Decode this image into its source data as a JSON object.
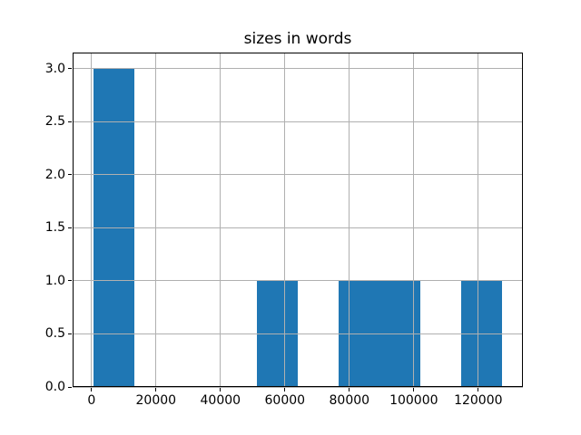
{
  "chart_data": {
    "type": "bar",
    "subtype": "histogram",
    "title": "sizes in words",
    "xlabel": "",
    "ylabel": "",
    "bin_edges": [
      500,
      13200,
      25900,
      38600,
      51300,
      64000,
      76700,
      89400,
      102100,
      114800,
      127500
    ],
    "counts": [
      3,
      0,
      0,
      0,
      1,
      0,
      1,
      1,
      0,
      1
    ],
    "x_ticks": [
      0,
      20000,
      40000,
      60000,
      80000,
      100000,
      120000
    ],
    "x_tick_labels": [
      "0",
      "20000",
      "40000",
      "60000",
      "80000",
      "100000",
      "120000"
    ],
    "y_ticks": [
      0,
      0.5,
      1,
      1.5,
      2,
      2.5,
      3
    ],
    "y_tick_labels": [
      "0.0",
      "0.5",
      "1.0",
      "1.5",
      "2.0",
      "2.5",
      "3.0"
    ],
    "xlim": [
      -5850,
      133850
    ],
    "ylim": [
      0,
      3.15
    ],
    "grid": true,
    "grid_position": "above-bars",
    "legend": null,
    "colors": {
      "bar": "#1f77b4",
      "grid": "#b0b0b0",
      "spine": "#000000",
      "background": "#ffffff",
      "text": "#000000"
    }
  }
}
